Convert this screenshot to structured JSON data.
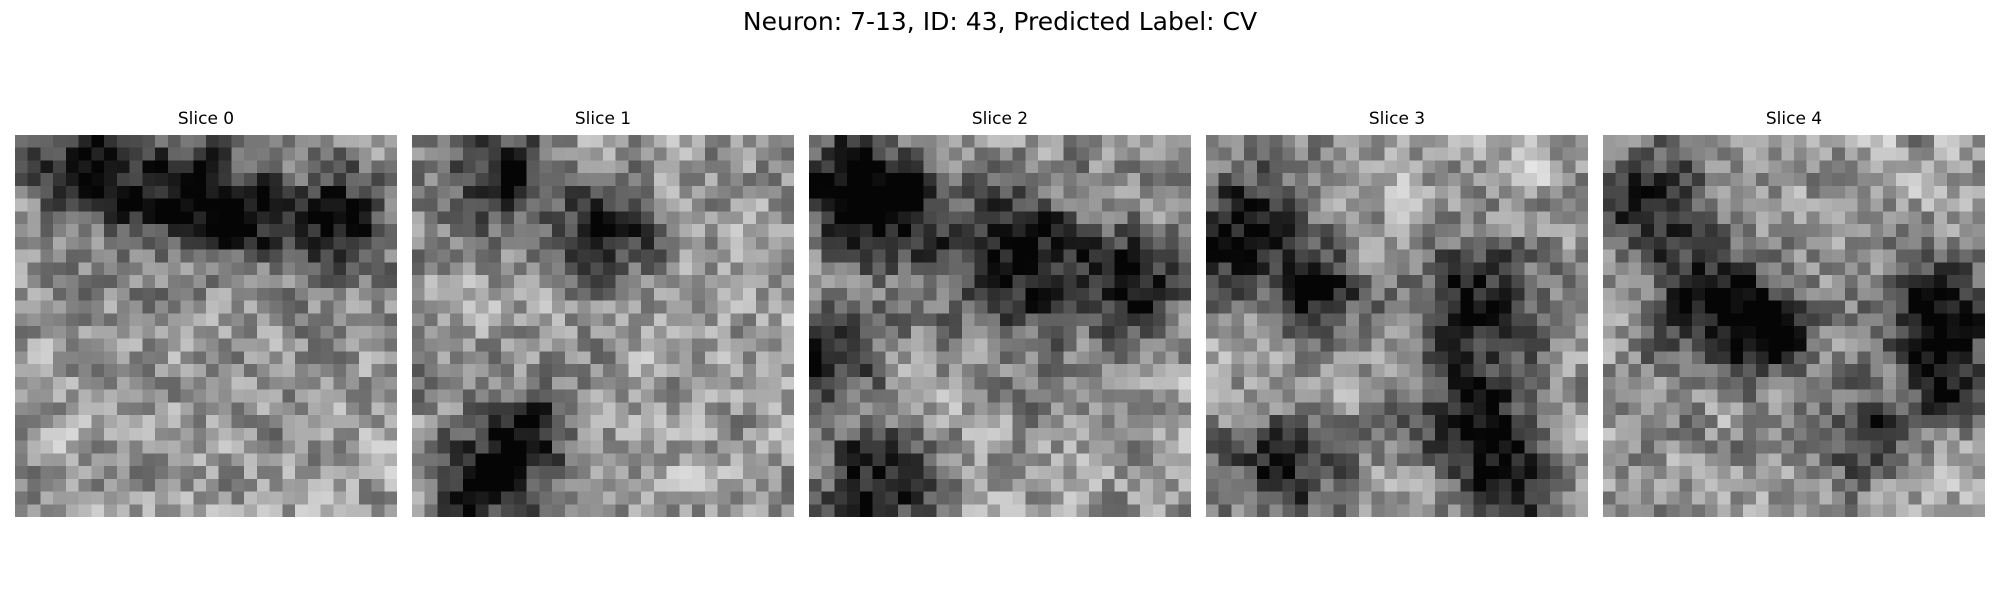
{
  "figure": {
    "suptitle": "Neuron: 7-13, ID: 43, Predicted Label: CV",
    "colormap": "gray",
    "grid_size": 30
  },
  "slices": [
    {
      "title": "Slice 0",
      "seed": 11,
      "dark_blobs": [
        [
          0.18,
          0.08,
          0.1
        ],
        [
          0.42,
          0.16,
          0.11
        ],
        [
          0.6,
          0.2,
          0.08
        ],
        [
          0.85,
          0.22,
          0.1
        ]
      ]
    },
    {
      "title": "Slice 1",
      "seed": 23,
      "dark_blobs": [
        [
          0.22,
          0.1,
          0.1
        ],
        [
          0.5,
          0.26,
          0.09
        ],
        [
          0.18,
          0.92,
          0.1
        ],
        [
          0.3,
          0.78,
          0.08
        ]
      ]
    },
    {
      "title": "Slice 2",
      "seed": 37,
      "dark_blobs": [
        [
          0.08,
          0.12,
          0.1
        ],
        [
          0.22,
          0.2,
          0.1
        ],
        [
          0.55,
          0.33,
          0.14
        ],
        [
          0.05,
          0.55,
          0.1
        ],
        [
          0.18,
          0.9,
          0.1
        ],
        [
          0.85,
          0.4,
          0.1
        ]
      ]
    },
    {
      "title": "Slice 3",
      "seed": 49,
      "dark_blobs": [
        [
          0.1,
          0.25,
          0.12
        ],
        [
          0.3,
          0.4,
          0.08
        ],
        [
          0.7,
          0.45,
          0.12
        ],
        [
          0.2,
          0.88,
          0.1
        ],
        [
          0.7,
          0.75,
          0.1
        ],
        [
          0.8,
          0.92,
          0.08
        ]
      ]
    },
    {
      "title": "Slice 4",
      "seed": 61,
      "dark_blobs": [
        [
          0.12,
          0.18,
          0.1
        ],
        [
          0.3,
          0.45,
          0.12
        ],
        [
          0.45,
          0.52,
          0.08
        ],
        [
          0.85,
          0.45,
          0.1
        ],
        [
          0.9,
          0.62,
          0.08
        ],
        [
          0.7,
          0.78,
          0.08
        ]
      ]
    }
  ]
}
